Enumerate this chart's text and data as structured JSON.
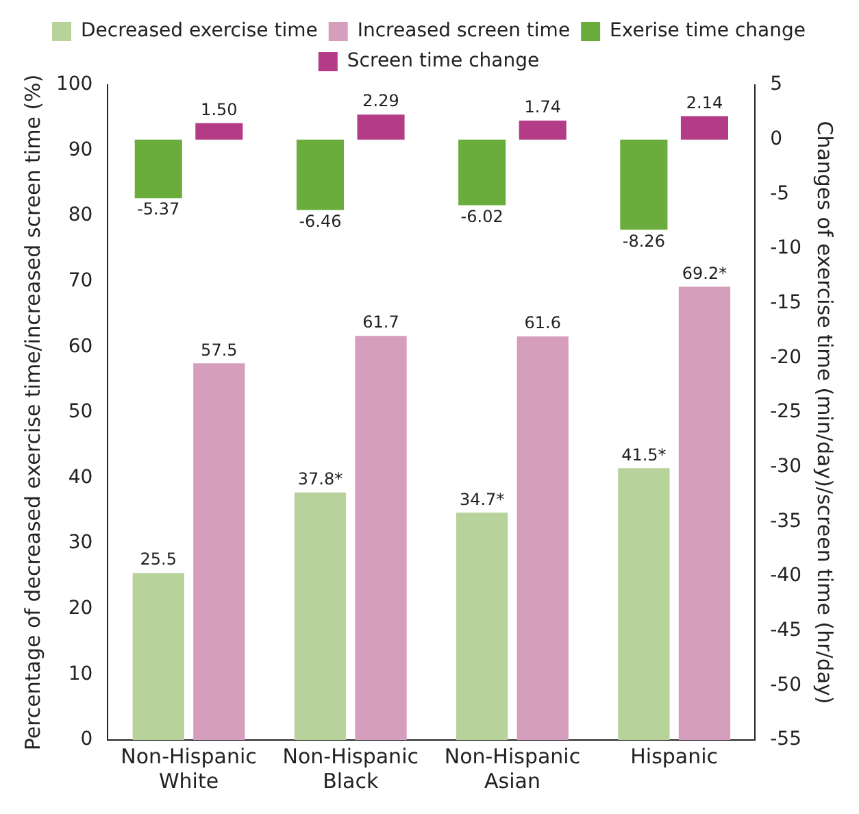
{
  "chart_data": {
    "type": "bar",
    "categories": [
      "Non-Hispanic White",
      "Non-Hispanic Black",
      "Non-Hispanic Asian",
      "Hispanic"
    ],
    "ylabel": "Percentage of decreased exercise time/increased screen time (%)",
    "y2label": "Changes of exercise time (min/day)/screen time (hr/day)",
    "series": [
      {
        "name": "Decreased exercise time",
        "color": "#b7d29b",
        "values": [
          25.5,
          37.8,
          34.7,
          41.5
        ],
        "value_labels": [
          "25.5",
          "37.8*",
          "34.7*",
          "41.5*"
        ]
      },
      {
        "name": "Increased screen time",
        "color": "#d69ebd",
        "values": [
          57.5,
          61.7,
          61.6,
          69.2
        ],
        "value_labels": [
          "57.5",
          "61.7",
          "61.6",
          "69.2*"
        ]
      },
      {
        "name": "Exerise time change",
        "color": "#6aad3d",
        "axis": "y2",
        "values": [
          -5.37,
          -6.46,
          -6.02,
          -8.26
        ],
        "value_labels": [
          "-5.37",
          "-6.46",
          "-6.02",
          "-8.26"
        ]
      },
      {
        "name": "Screen time change",
        "color": "#b43c86",
        "axis": "y2",
        "values": [
          1.5,
          2.29,
          1.74,
          2.14
        ],
        "value_labels": [
          "1.50",
          "2.29",
          "1.74",
          "2.14"
        ]
      }
    ],
    "ylim": [
      0,
      100
    ],
    "yticks": [
      0,
      10,
      20,
      30,
      40,
      50,
      60,
      70,
      80,
      90,
      100
    ],
    "y2lim": [
      -55,
      5
    ],
    "y2ticks": [
      -55,
      -50,
      -45,
      -40,
      -35,
      -30,
      -25,
      -20,
      -15,
      -10,
      -5,
      0,
      5
    ],
    "grid": false,
    "legend": "top"
  }
}
